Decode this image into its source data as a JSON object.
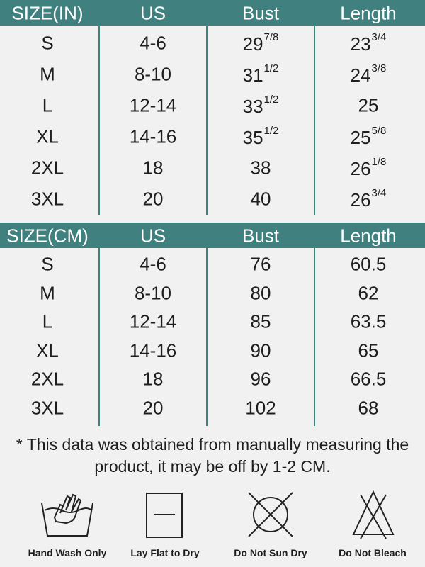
{
  "tables": [
    {
      "header": [
        "SIZE(IN)",
        "US",
        "Bust",
        "Length"
      ],
      "rows": [
        [
          "S",
          "4-6",
          {
            "whole": "29",
            "fraction": "7/8"
          },
          {
            "whole": "23",
            "fraction": "3/4"
          }
        ],
        [
          "M",
          "8-10",
          {
            "whole": "31",
            "fraction": "1/2"
          },
          {
            "whole": "24",
            "fraction": "3/8"
          }
        ],
        [
          "L",
          "12-14",
          {
            "whole": "33",
            "fraction": "1/2"
          },
          "25"
        ],
        [
          "XL",
          "14-16",
          {
            "whole": "35",
            "fraction": "1/2"
          },
          {
            "whole": "25",
            "fraction": "5/8"
          }
        ],
        [
          "2XL",
          "18",
          "38",
          {
            "whole": "26",
            "fraction": "1/8"
          }
        ],
        [
          "3XL",
          "20",
          "40",
          {
            "whole": "26",
            "fraction": "3/4"
          }
        ]
      ]
    },
    {
      "header": [
        "SIZE(CM)",
        "US",
        "Bust",
        "Length"
      ],
      "rows": [
        [
          "S",
          "4-6",
          "76",
          "60.5"
        ],
        [
          "M",
          "8-10",
          "80",
          "62"
        ],
        [
          "L",
          "12-14",
          "85",
          "63.5"
        ],
        [
          "XL",
          "14-16",
          "90",
          "65"
        ],
        [
          "2XL",
          "18",
          "96",
          "66.5"
        ],
        [
          "3XL",
          "20",
          "102",
          "68"
        ]
      ]
    }
  ],
  "note": "* This data was obtained from manually measuring the product, it may be off by 1-2 CM.",
  "icons": [
    {
      "label": "Hand Wash Only"
    },
    {
      "label": "Lay Flat to Dry"
    },
    {
      "label": "Do Not Sun Dry"
    },
    {
      "label": "Do Not Bleach"
    }
  ]
}
